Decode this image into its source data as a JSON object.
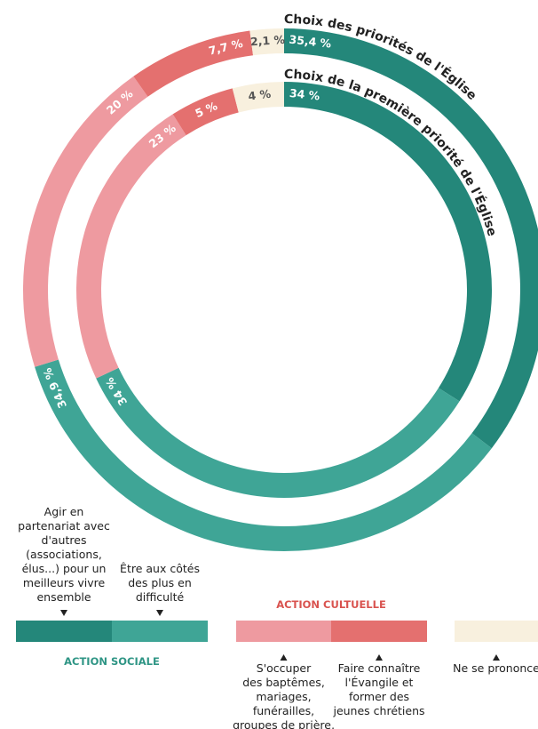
{
  "chart_data": [
    {
      "type": "pie",
      "title": "Choix des priorités de l'Église",
      "values": [
        35.4,
        34.9,
        20,
        7.7,
        2.1
      ],
      "value_labels": [
        "35,4 %",
        "34,9 %",
        "20 %",
        "7,7 %",
        "2,1 %"
      ],
      "colors": [
        "#24877a",
        "#3fa596",
        "#ee9aa0",
        "#e4706f",
        "#f8f0de"
      ]
    },
    {
      "type": "pie",
      "title": "Choix de la première priorité de l'Église",
      "values": [
        34,
        34,
        23,
        5,
        4
      ],
      "value_labels": [
        "34 %",
        "34 %",
        "23 %",
        "5 %",
        "4 %"
      ],
      "colors": [
        "#24877a",
        "#3fa596",
        "#ee9aa0",
        "#e4706f",
        "#f8f0de"
      ]
    }
  ],
  "legend": {
    "groups": [
      "ACTION SOCIALE",
      "ACTION CULTUELLE"
    ],
    "items": [
      {
        "lines": [
          "Agir en",
          "partenariat avec",
          "d'autres",
          "(associations,",
          "élus...) pour un",
          "meilleurs vivre",
          "ensemble"
        ],
        "color": "#24877a"
      },
      {
        "lines": [
          "Être aux côtés",
          "des plus en",
          "difficulté"
        ],
        "color": "#3fa596"
      },
      {
        "lines": [
          "S'occuper",
          "des baptêmes,",
          "mariages,",
          "funérailles,",
          "groupes de prière,"
        ],
        "color": "#ee9aa0"
      },
      {
        "lines": [
          "Faire connaître",
          "l'Évangile et",
          "former des",
          "jeunes chrétiens"
        ],
        "color": "#e4706f"
      },
      {
        "lines": [
          "Ne se prononce"
        ],
        "color": "#f8f0de"
      }
    ]
  }
}
